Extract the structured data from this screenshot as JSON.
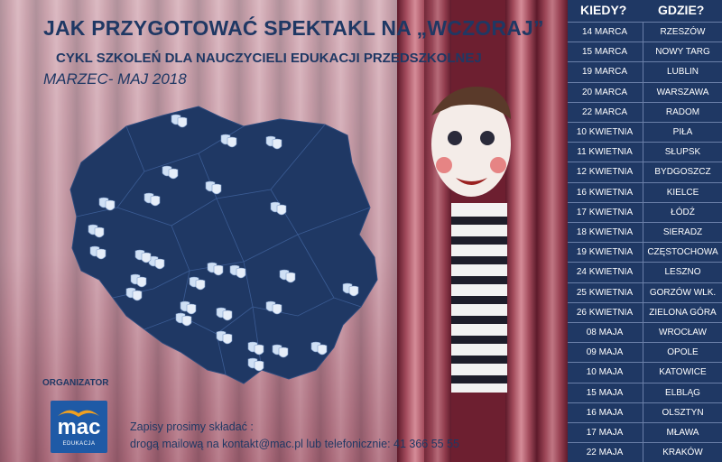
{
  "header": {
    "title": "JAK PRZYGOTOWAĆ SPEKTAKL NA „WCZORAJ”",
    "subtitle": "CYKL SZKOLEŃ DLA NAUCZYCIELI EDUKACJI PRZEDSZKOLNEJ",
    "dates": "MARZEC- MAJ 2018"
  },
  "organizer": {
    "label": "ORGANIZATOR",
    "logo_text": "mac",
    "logo_sub": "EDUKACJA"
  },
  "contact": {
    "line1": "Zapisy prosimy składać :",
    "line2": "drogą mailową na kontakt@mac.pl lub telefonicznie: 41 366 55 55"
  },
  "schedule": {
    "col_when": "KIEDY?",
    "col_where": "GDZIE?",
    "rows": [
      {
        "date": "14 MARCA",
        "city": "RZESZÓW"
      },
      {
        "date": "15 MARCA",
        "city": "NOWY TARG"
      },
      {
        "date": "19 MARCA",
        "city": "LUBLIN"
      },
      {
        "date": "20 MARCA",
        "city": "WARSZAWA"
      },
      {
        "date": "22 MARCA",
        "city": "RADOM"
      },
      {
        "date": "10 KWIETNIA",
        "city": "PIŁA"
      },
      {
        "date": "11 KWIETNIA",
        "city": "SŁUPSK"
      },
      {
        "date": "12 KWIETNIA",
        "city": "BYDGOSZCZ"
      },
      {
        "date": "16 KWIETNIA",
        "city": "KIELCE"
      },
      {
        "date": "17 KWIETNIA",
        "city": "ŁÓDŹ"
      },
      {
        "date": "18 KWIETNIA",
        "city": "SIERADZ"
      },
      {
        "date": "19 KWIETNIA",
        "city": "CZĘSTOCHOWA"
      },
      {
        "date": "24 KWIETNIA",
        "city": "LESZNO"
      },
      {
        "date": "25 KWIETNIA",
        "city": "GORZÓW WLK."
      },
      {
        "date": "26 KWIETNIA",
        "city": "ZIELONA GÓRA"
      },
      {
        "date": "08 MAJA",
        "city": "WROCŁAW"
      },
      {
        "date": "09 MAJA",
        "city": "OPOLE"
      },
      {
        "date": "10 MAJA",
        "city": "KATOWICE"
      },
      {
        "date": "15 MAJA",
        "city": "ELBLĄG"
      },
      {
        "date": "16 MAJA",
        "city": "OLSZTYN"
      },
      {
        "date": "17 MAJA",
        "city": "MŁAWA"
      },
      {
        "date": "22 MAJA",
        "city": "KRAKÓW"
      }
    ]
  },
  "colors": {
    "navy": "#1f3864",
    "map": "#1f3864",
    "curtain": "#8a2a3c",
    "logo_blue": "#1f5aa6"
  },
  "map": {
    "marker_icon": "theatre-masks-icon",
    "marker_count": 28
  }
}
